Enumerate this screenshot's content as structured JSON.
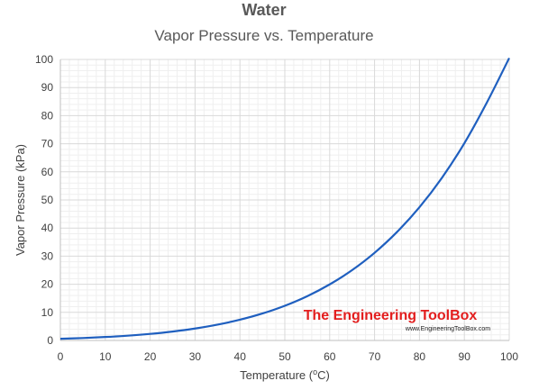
{
  "chart_data": {
    "type": "line",
    "title": "Water",
    "subtitle": "Vapor Pressure vs. Temperature",
    "xlabel_main": "Temperature (",
    "xlabel_sup": "o",
    "xlabel_end": "C)",
    "ylabel": "Vapor Pressure (kPa)",
    "xlim": [
      0,
      100
    ],
    "ylim": [
      0,
      100
    ],
    "x_ticks": [
      "0",
      "10",
      "20",
      "30",
      "40",
      "50",
      "60",
      "70",
      "80",
      "90",
      "100"
    ],
    "y_ticks": [
      "0",
      "10",
      "20",
      "30",
      "40",
      "50",
      "60",
      "70",
      "80",
      "90",
      "100"
    ],
    "grid": true,
    "series": [
      {
        "x": [
          0,
          5,
          10,
          15,
          20,
          25,
          30,
          35,
          40,
          45,
          50,
          55,
          60,
          65,
          70,
          75,
          80,
          85,
          90,
          95,
          100
        ],
        "y": [
          0.61,
          0.87,
          1.23,
          1.71,
          2.34,
          3.17,
          4.25,
          5.63,
          7.38,
          9.59,
          12.35,
          15.76,
          19.95,
          25.04,
          31.2,
          38.6,
          47.41,
          57.87,
          70.18,
          84.61,
          101.42
        ]
      }
    ],
    "watermark": {
      "main": "The Engineering ToolBox",
      "url": "www.EngineeringToolBox.com"
    },
    "colors": {
      "line": "#1f5fbf",
      "watermark_main": "#e31e1e",
      "watermark_url": "#1a1a1a",
      "grid_major": "#d9d9d9",
      "grid_minor": "#efefef",
      "axis": "#bfbfbf",
      "text": "#404040",
      "title": "#595959"
    }
  }
}
